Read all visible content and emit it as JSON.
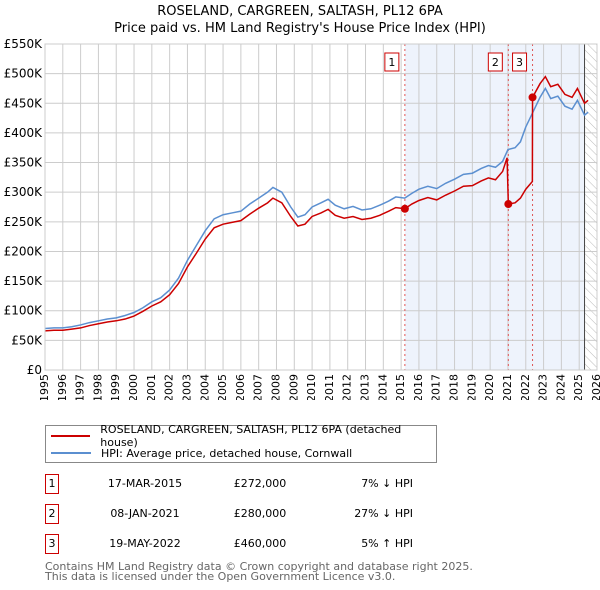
{
  "chart_data": {
    "type": "line",
    "title": "ROSELAND, CARGREEN, SALTASH, PL12 6PA",
    "subtitle": "Price paid vs. HM Land Registry's House Price Index (HPI)",
    "xlim": [
      1995,
      2026
    ],
    "ylim": [
      0,
      550000
    ],
    "x_ticks": [
      "1995",
      "1996",
      "1997",
      "1998",
      "1999",
      "2000",
      "2001",
      "2002",
      "2003",
      "2004",
      "2005",
      "2006",
      "2007",
      "2008",
      "2009",
      "2010",
      "2011",
      "2012",
      "2013",
      "2014",
      "2015",
      "2016",
      "2017",
      "2018",
      "2019",
      "2020",
      "2021",
      "2022",
      "2023",
      "2024",
      "2025",
      "2026"
    ],
    "y_ticks": [
      {
        "v": 0,
        "label": "£0"
      },
      {
        "v": 50000,
        "label": "£50K"
      },
      {
        "v": 100000,
        "label": "£100K"
      },
      {
        "v": 150000,
        "label": "£150K"
      },
      {
        "v": 200000,
        "label": "£200K"
      },
      {
        "v": 250000,
        "label": "£250K"
      },
      {
        "v": 300000,
        "label": "£300K"
      },
      {
        "v": 350000,
        "label": "£350K"
      },
      {
        "v": 400000,
        "label": "£400K"
      },
      {
        "v": 450000,
        "label": "£450K"
      },
      {
        "v": 500000,
        "label": "£500K"
      },
      {
        "v": 550000,
        "label": "£550K"
      }
    ],
    "grid": true,
    "shaded_from": 2015.21,
    "hatched_from": 2025.3,
    "series": [
      {
        "name": "ROSELAND, CARGREEN, SALTASH, PL12 6PA (detached house)",
        "color": "#cc0000",
        "unit": "K",
        "points": [
          [
            1995,
            66
          ],
          [
            1995.5,
            67
          ],
          [
            1996,
            67
          ],
          [
            1996.5,
            69
          ],
          [
            1997,
            71
          ],
          [
            1997.5,
            75
          ],
          [
            1998,
            78
          ],
          [
            1998.5,
            81
          ],
          [
            1999,
            83
          ],
          [
            1999.5,
            86
          ],
          [
            2000,
            91
          ],
          [
            2000.5,
            99
          ],
          [
            2001,
            108
          ],
          [
            2001.5,
            115
          ],
          [
            2002,
            127
          ],
          [
            2002.5,
            146
          ],
          [
            2003,
            174
          ],
          [
            2003.5,
            197
          ],
          [
            2004,
            221
          ],
          [
            2004.5,
            240
          ],
          [
            2005,
            246
          ],
          [
            2005.5,
            249
          ],
          [
            2006,
            252
          ],
          [
            2006.5,
            263
          ],
          [
            2007,
            273
          ],
          [
            2007.5,
            282
          ],
          [
            2007.8,
            290
          ],
          [
            2008.3,
            282
          ],
          [
            2008.8,
            259
          ],
          [
            2009.2,
            243
          ],
          [
            2009.6,
            246
          ],
          [
            2010,
            259
          ],
          [
            2010.5,
            265
          ],
          [
            2010.9,
            271
          ],
          [
            2011.3,
            261
          ],
          [
            2011.8,
            256
          ],
          [
            2012.3,
            259
          ],
          [
            2012.8,
            254
          ],
          [
            2013.3,
            256
          ],
          [
            2013.8,
            261
          ],
          [
            2014.3,
            268
          ],
          [
            2014.7,
            274
          ],
          [
            2015.21,
            272
          ],
          [
            2015.6,
            280
          ],
          [
            2016,
            286
          ],
          [
            2016.5,
            291
          ],
          [
            2017,
            287
          ],
          [
            2017.5,
            295
          ],
          [
            2018,
            302
          ],
          [
            2018.5,
            310
          ],
          [
            2019,
            311
          ],
          [
            2019.5,
            319
          ],
          [
            2019.9,
            324
          ],
          [
            2020.3,
            321
          ],
          [
            2020.7,
            335
          ],
          [
            2020.95,
            358
          ],
          [
            2021.02,
            280
          ],
          [
            2021.4,
            282
          ],
          [
            2021.7,
            290
          ],
          [
            2022,
            305
          ],
          [
            2022.37,
            318
          ],
          [
            2022.38,
            460
          ],
          [
            2022.8,
            483
          ],
          [
            2023.1,
            495
          ],
          [
            2023.4,
            478
          ],
          [
            2023.8,
            482
          ],
          [
            2024.2,
            465
          ],
          [
            2024.6,
            460
          ],
          [
            2024.9,
            475
          ],
          [
            2025.3,
            450
          ],
          [
            2025.5,
            455
          ]
        ]
      },
      {
        "name": "HPI: Average price, detached house, Cornwall",
        "color": "#5b8fd0",
        "unit": "K",
        "points": [
          [
            1995,
            70
          ],
          [
            1995.5,
            71
          ],
          [
            1996,
            71
          ],
          [
            1996.5,
            73
          ],
          [
            1997,
            76
          ],
          [
            1997.5,
            80
          ],
          [
            1998,
            83
          ],
          [
            1998.5,
            86
          ],
          [
            1999,
            88
          ],
          [
            1999.5,
            92
          ],
          [
            2000,
            97
          ],
          [
            2000.5,
            105
          ],
          [
            2001,
            115
          ],
          [
            2001.5,
            122
          ],
          [
            2002,
            135
          ],
          [
            2002.5,
            155
          ],
          [
            2003,
            185
          ],
          [
            2003.5,
            210
          ],
          [
            2004,
            235
          ],
          [
            2004.5,
            255
          ],
          [
            2005,
            262
          ],
          [
            2005.5,
            265
          ],
          [
            2006,
            268
          ],
          [
            2006.5,
            280
          ],
          [
            2007,
            290
          ],
          [
            2007.5,
            300
          ],
          [
            2007.8,
            308
          ],
          [
            2008.3,
            300
          ],
          [
            2008.8,
            275
          ],
          [
            2009.2,
            258
          ],
          [
            2009.6,
            262
          ],
          [
            2010,
            275
          ],
          [
            2010.5,
            282
          ],
          [
            2010.9,
            288
          ],
          [
            2011.3,
            278
          ],
          [
            2011.8,
            272
          ],
          [
            2012.3,
            276
          ],
          [
            2012.8,
            270
          ],
          [
            2013.3,
            272
          ],
          [
            2013.8,
            278
          ],
          [
            2014.3,
            285
          ],
          [
            2014.7,
            292
          ],
          [
            2015.2,
            290
          ],
          [
            2015.6,
            298
          ],
          [
            2016,
            305
          ],
          [
            2016.5,
            310
          ],
          [
            2017,
            306
          ],
          [
            2017.5,
            315
          ],
          [
            2018,
            322
          ],
          [
            2018.5,
            330
          ],
          [
            2019,
            332
          ],
          [
            2019.5,
            340
          ],
          [
            2019.9,
            345
          ],
          [
            2020.3,
            342
          ],
          [
            2020.7,
            352
          ],
          [
            2021,
            372
          ],
          [
            2021.4,
            375
          ],
          [
            2021.7,
            385
          ],
          [
            2022,
            410
          ],
          [
            2022.4,
            435
          ],
          [
            2022.8,
            460
          ],
          [
            2023.1,
            475
          ],
          [
            2023.4,
            458
          ],
          [
            2023.8,
            462
          ],
          [
            2024.2,
            445
          ],
          [
            2024.6,
            440
          ],
          [
            2024.9,
            455
          ],
          [
            2025.3,
            430
          ],
          [
            2025.5,
            435
          ]
        ]
      }
    ],
    "sales": [
      {
        "id": "1",
        "x": 2015.21,
        "value": 272
      },
      {
        "id": "2",
        "x": 2021.02,
        "value": 280
      },
      {
        "id": "3",
        "x": 2022.38,
        "value": 460
      }
    ]
  },
  "legend": {
    "red": "ROSELAND, CARGREEN, SALTASH, PL12 6PA (detached house)",
    "blue": "HPI: Average price, detached house, Cornwall"
  },
  "table": [
    {
      "id": "1",
      "date": "17-MAR-2015",
      "price": "£272,000",
      "hpi": "7% ↓ HPI"
    },
    {
      "id": "2",
      "date": "08-JAN-2021",
      "price": "£280,000",
      "hpi": "27% ↓ HPI"
    },
    {
      "id": "3",
      "date": "19-MAY-2022",
      "price": "£460,000",
      "hpi": "5% ↑ HPI"
    }
  ],
  "footer": {
    "line1": "Contains HM Land Registry data © Crown copyright and database right 2025.",
    "line2": "This data is licensed under the Open Government Licence v3.0."
  }
}
